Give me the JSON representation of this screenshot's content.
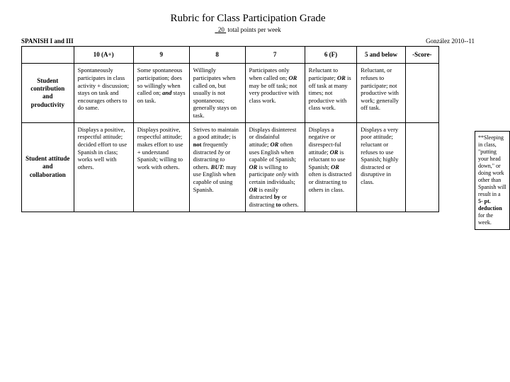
{
  "header": {
    "title": "Rubric for Class Participation Grade",
    "points_value": "20",
    "points_suffix": " total points per week",
    "class_label": "SPANISH I and III",
    "author": "González  2010--11"
  },
  "columns": {
    "blank": "",
    "c10": "10  (A+)",
    "c9": "9",
    "c8": "8",
    "c7": "7",
    "c6": "6  (F)",
    "c5": "5 and below",
    "score": "-Score-"
  },
  "rows": {
    "r1_label": "Student contribution and productivity",
    "r2_label": "Student attitude and collaboration"
  },
  "side": {
    "text_html": "**Sleeping in class, \"putting your head down,\" or doing work other than Spanish will result in a <b>5- pt. deduction</b> for the week."
  },
  "cells": {
    "r1c10": "Spontaneously participates in class activity + discussion; stays on task and encourages others to do same.",
    "r1c9_html": "Some spontaneous participation; does so willingly when called on;  <b><i>and</i></b>  stays on task.",
    "r1c8": "Willingly participates when called on, but usually is not spontaneous; generally stays on task.",
    "r1c7_html": "Participates only when called on; <b><i>OR</i></b> may be off task; not very productive with class work.",
    "r1c6_html": "Reluctant to participate; <b><i>OR</i></b> is off task at many times; not productive with class work.",
    "r1c5": "Reluctant, or refuses to participate; not productive with work; generally off task.",
    "r2c10": "Displays a positive, respectful attitude; decided effort to use Spanish in class; works well with others.",
    "r2c9": "Displays positive, respectful attitude; makes effort to use + understand Spanish; willing to work with others.",
    "r2c8_html": "Strives to maintain a good attitude; is <b>not</b> frequently distracted <i>by</i> or distracting <i>to</i> others. <b><i>BUT:</i></b>  may use English when capable of using Spanish.",
    "r2c7_html": "Displays disinterest or disdainful attitude; <b><i>OR</i></b> often uses English when capable of Spanish; <b><i>OR</i></b> is willing to participate <i>only</i> with certain individuals; <b><i>OR</i></b>  is easily distracted  <b>by</b> or distracting <b>to</b> others.",
    "r2c6_html": "Displays a negative or disrespect-ful attitude; <b><i>OR</i></b> is reluctant to use Spanish; <b><i>OR</i></b> often is distracted or distracting to others in class.",
    "r2c5": "Displays a very poor attitude; reluctant or refuses to use Spanish; highly distracted or disruptive in class."
  }
}
